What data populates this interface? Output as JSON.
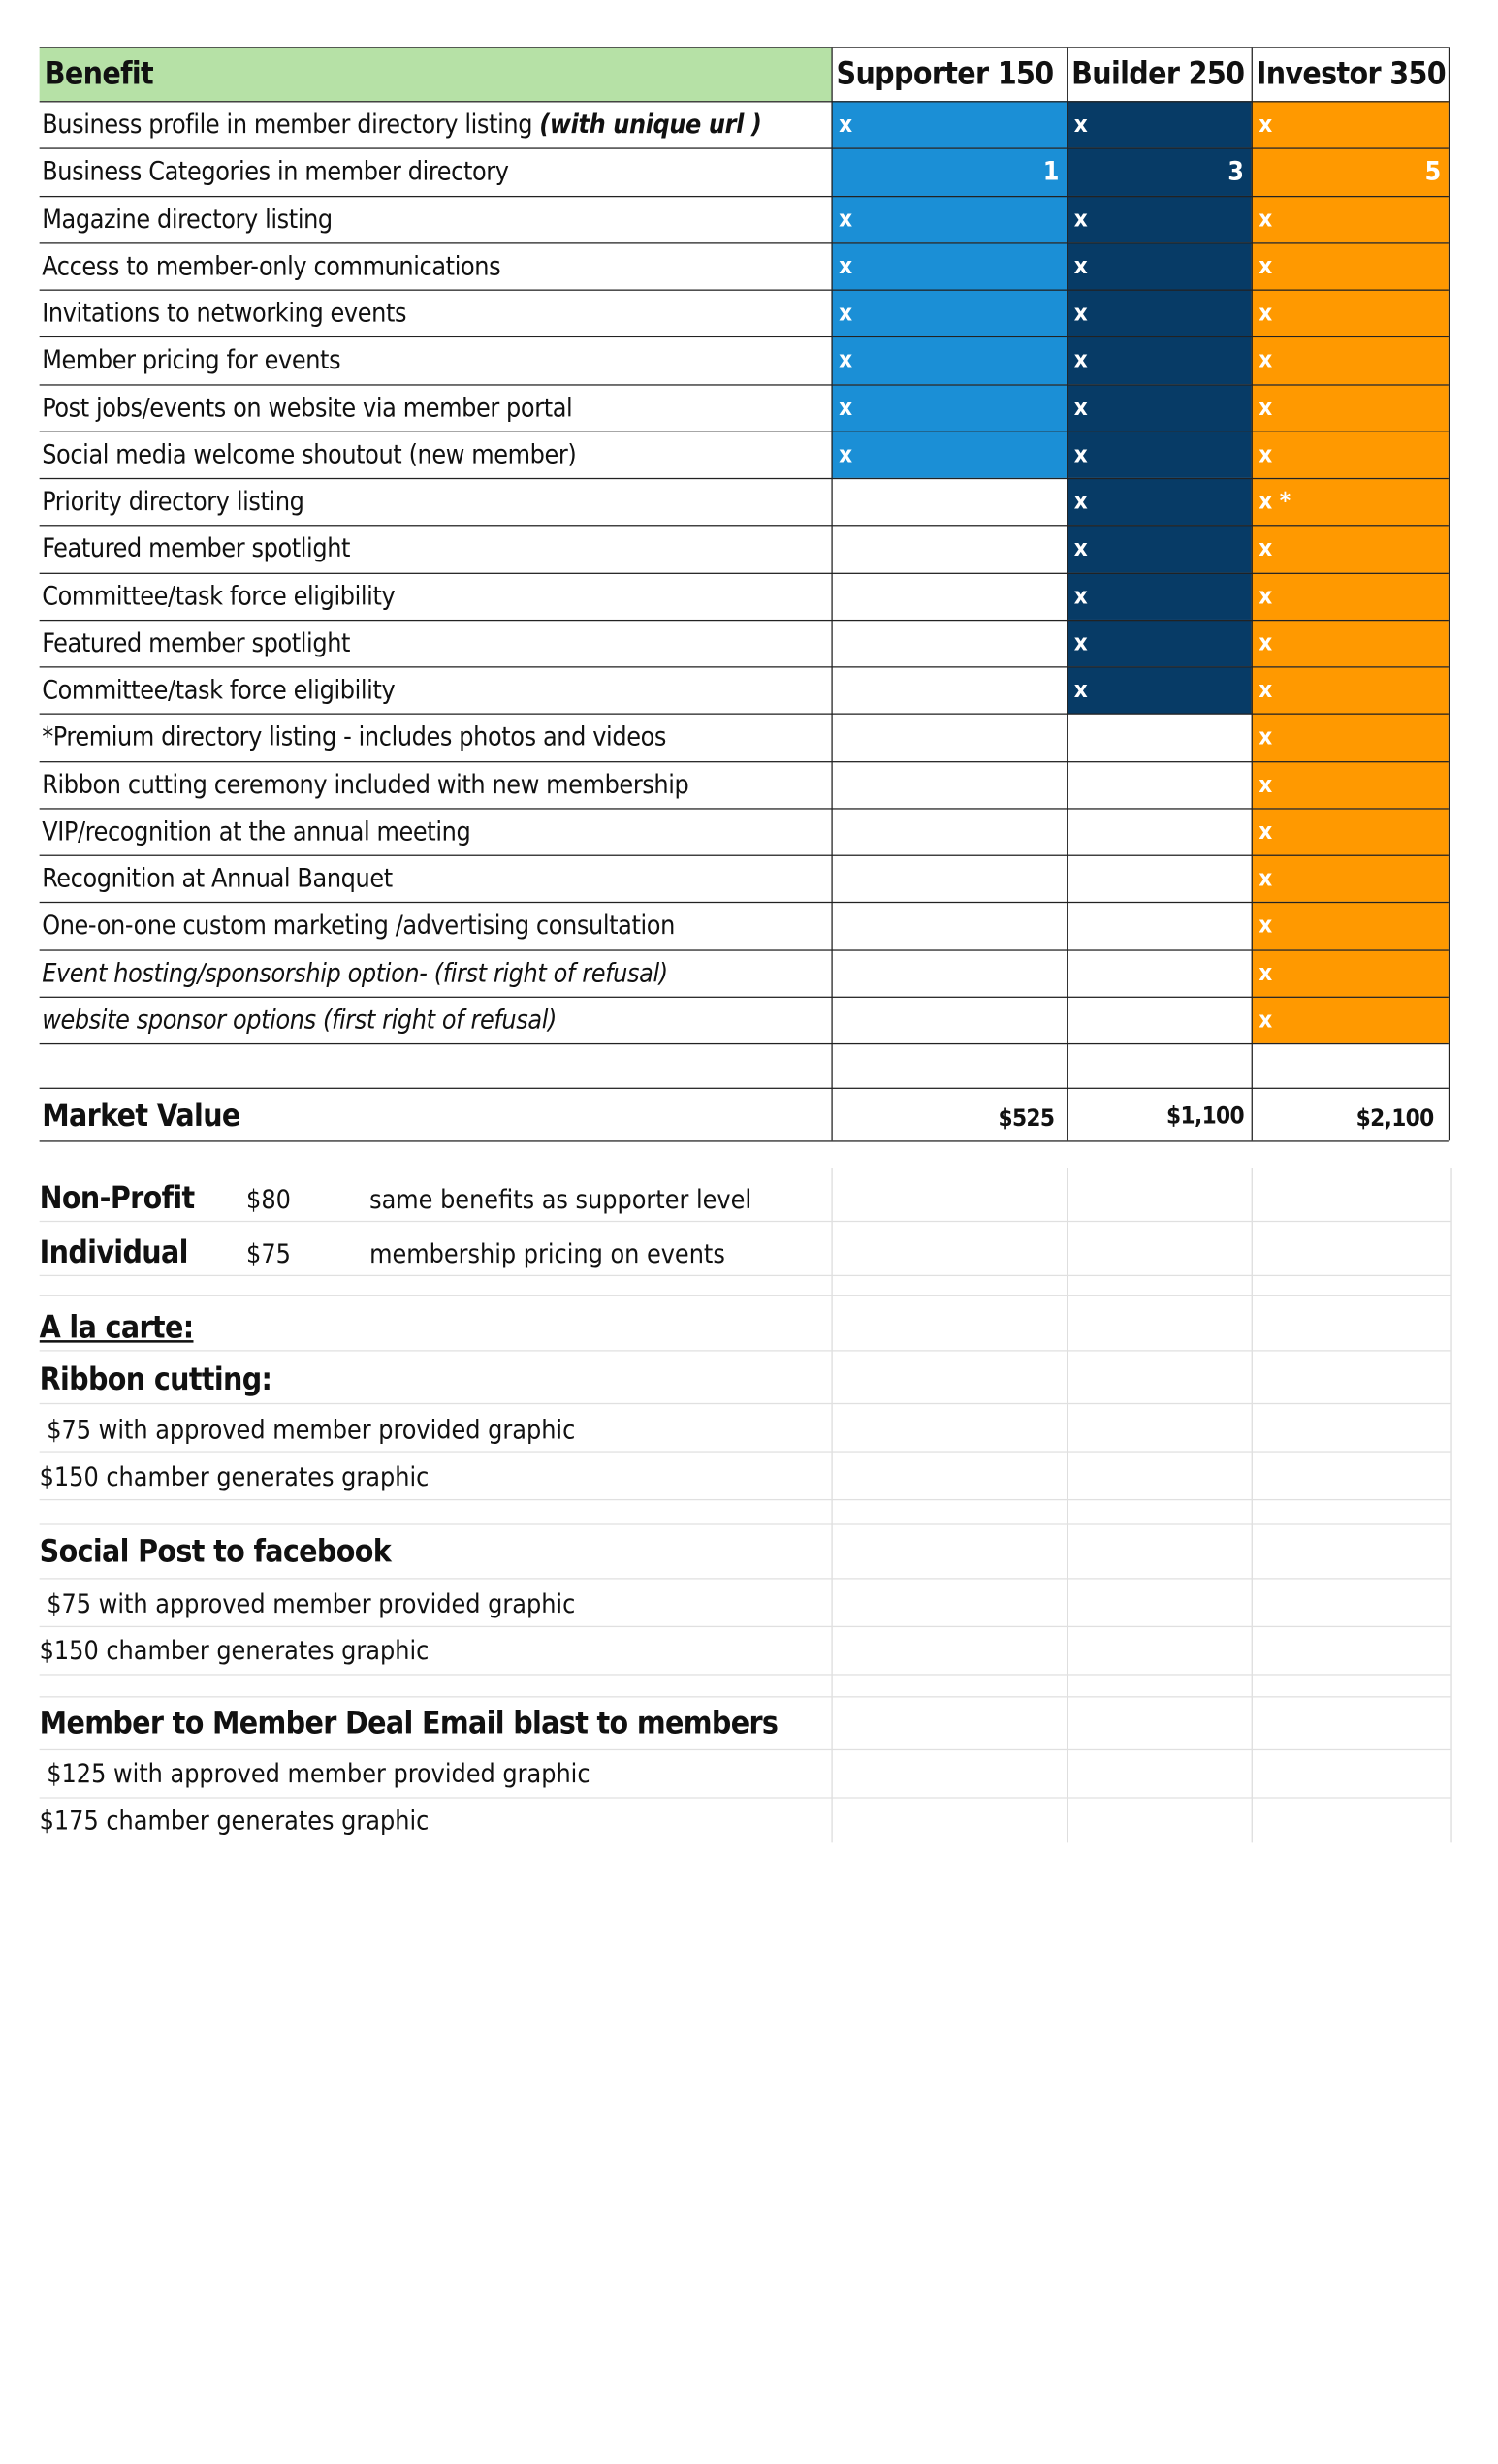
{
  "header": {
    "benefit": "Benefit",
    "supporter": "Supporter 150",
    "builder": "Builder 250",
    "investor": "Investor 350"
  },
  "rows": [
    {
      "label": "Business profile in member directory listing ",
      "label_em": "(with unique url )",
      "supporter": "x",
      "builder": "x",
      "investor": "x"
    },
    {
      "label": "Business Categories in member directory",
      "supporter": "1",
      "builder": "3",
      "investor": "5"
    },
    {
      "label": "Magazine directory listing",
      "supporter": "x",
      "builder": "x",
      "investor": "x"
    },
    {
      "label": "Access to member-only communications",
      "supporter": "x",
      "builder": "x",
      "investor": "x"
    },
    {
      "label": "Invitations to networking events",
      "supporter": "x",
      "builder": "x",
      "investor": "x"
    },
    {
      "label": "Member pricing for events",
      "supporter": "x",
      "builder": "x",
      "investor": "x"
    },
    {
      "label": "Post jobs/events on website via member portal",
      "supporter": "x",
      "builder": "x",
      "investor": "x"
    },
    {
      "label": "Social media welcome shoutout (new member)",
      "supporter": "x",
      "builder": "x",
      "investor": "x"
    },
    {
      "label": "Priority directory listing",
      "supporter": "",
      "builder": "x",
      "investor": "x *"
    },
    {
      "label": "Featured member spotlight",
      "supporter": "",
      "builder": "x",
      "investor": "x"
    },
    {
      "label": "Committee/task force eligibility",
      "supporter": "",
      "builder": "x",
      "investor": "x"
    },
    {
      "label": "Featured member spotlight",
      "supporter": "",
      "builder": "x",
      "investor": "x"
    },
    {
      "label": "Committee/task force eligibility",
      "supporter": "",
      "builder": "x",
      "investor": "x"
    },
    {
      "label": "*Premium directory listing - includes photos and videos",
      "supporter": "",
      "builder": "",
      "investor": "x"
    },
    {
      "label": "Ribbon cutting ceremony included with new membership",
      "supporter": "",
      "builder": "",
      "investor": "x"
    },
    {
      "label": "VIP/recognition at the annual meeting",
      "supporter": "",
      "builder": "",
      "investor": "x"
    },
    {
      "label": "Recognition at Annual Banquet",
      "supporter": "",
      "builder": "",
      "investor": "x"
    },
    {
      "label": "One-on-one custom marketing /advertising consultation",
      "supporter": "",
      "builder": "",
      "investor": "x"
    },
    {
      "label": "Event hosting/sponsorship option- (first right of refusal)",
      "italic": true,
      "supporter": "",
      "builder": "",
      "investor": "x"
    },
    {
      "label": "website sponsor options (first right of refusal)",
      "italic": true,
      "supporter": "",
      "builder": "",
      "investor": "x"
    }
  ],
  "market_value": {
    "label": "Market Value",
    "supporter": "$525",
    "builder": "$1,100",
    "investor": "$2,100"
  },
  "other_levels": [
    {
      "name": "Non-Profit",
      "price": "$80",
      "desc": "same benefits as supporter level"
    },
    {
      "name": "Individual",
      "price": "$75",
      "desc": "membership pricing on events"
    }
  ],
  "a_la_carte": {
    "heading": "A la carte:",
    "ribbon_heading": "Ribbon cutting:",
    "ribbon_1": " $75 with approved member provided graphic",
    "ribbon_2": "$150 chamber generates graphic",
    "social_heading": "Social Post to facebook",
    "social_1": " $75 with approved member provided graphic",
    "social_2": "$150 chamber generates graphic",
    "deal_heading": "Member to Member Deal Email blast to members",
    "deal_1": " $125 with approved member provided graphic",
    "deal_2": "$175 chamber generates graphic"
  },
  "colors": {
    "header_green": "#b6e1a6",
    "supporter_blue": "#1b8fd6",
    "builder_navy": "#073b66",
    "investor_orange": "#ff9900"
  }
}
